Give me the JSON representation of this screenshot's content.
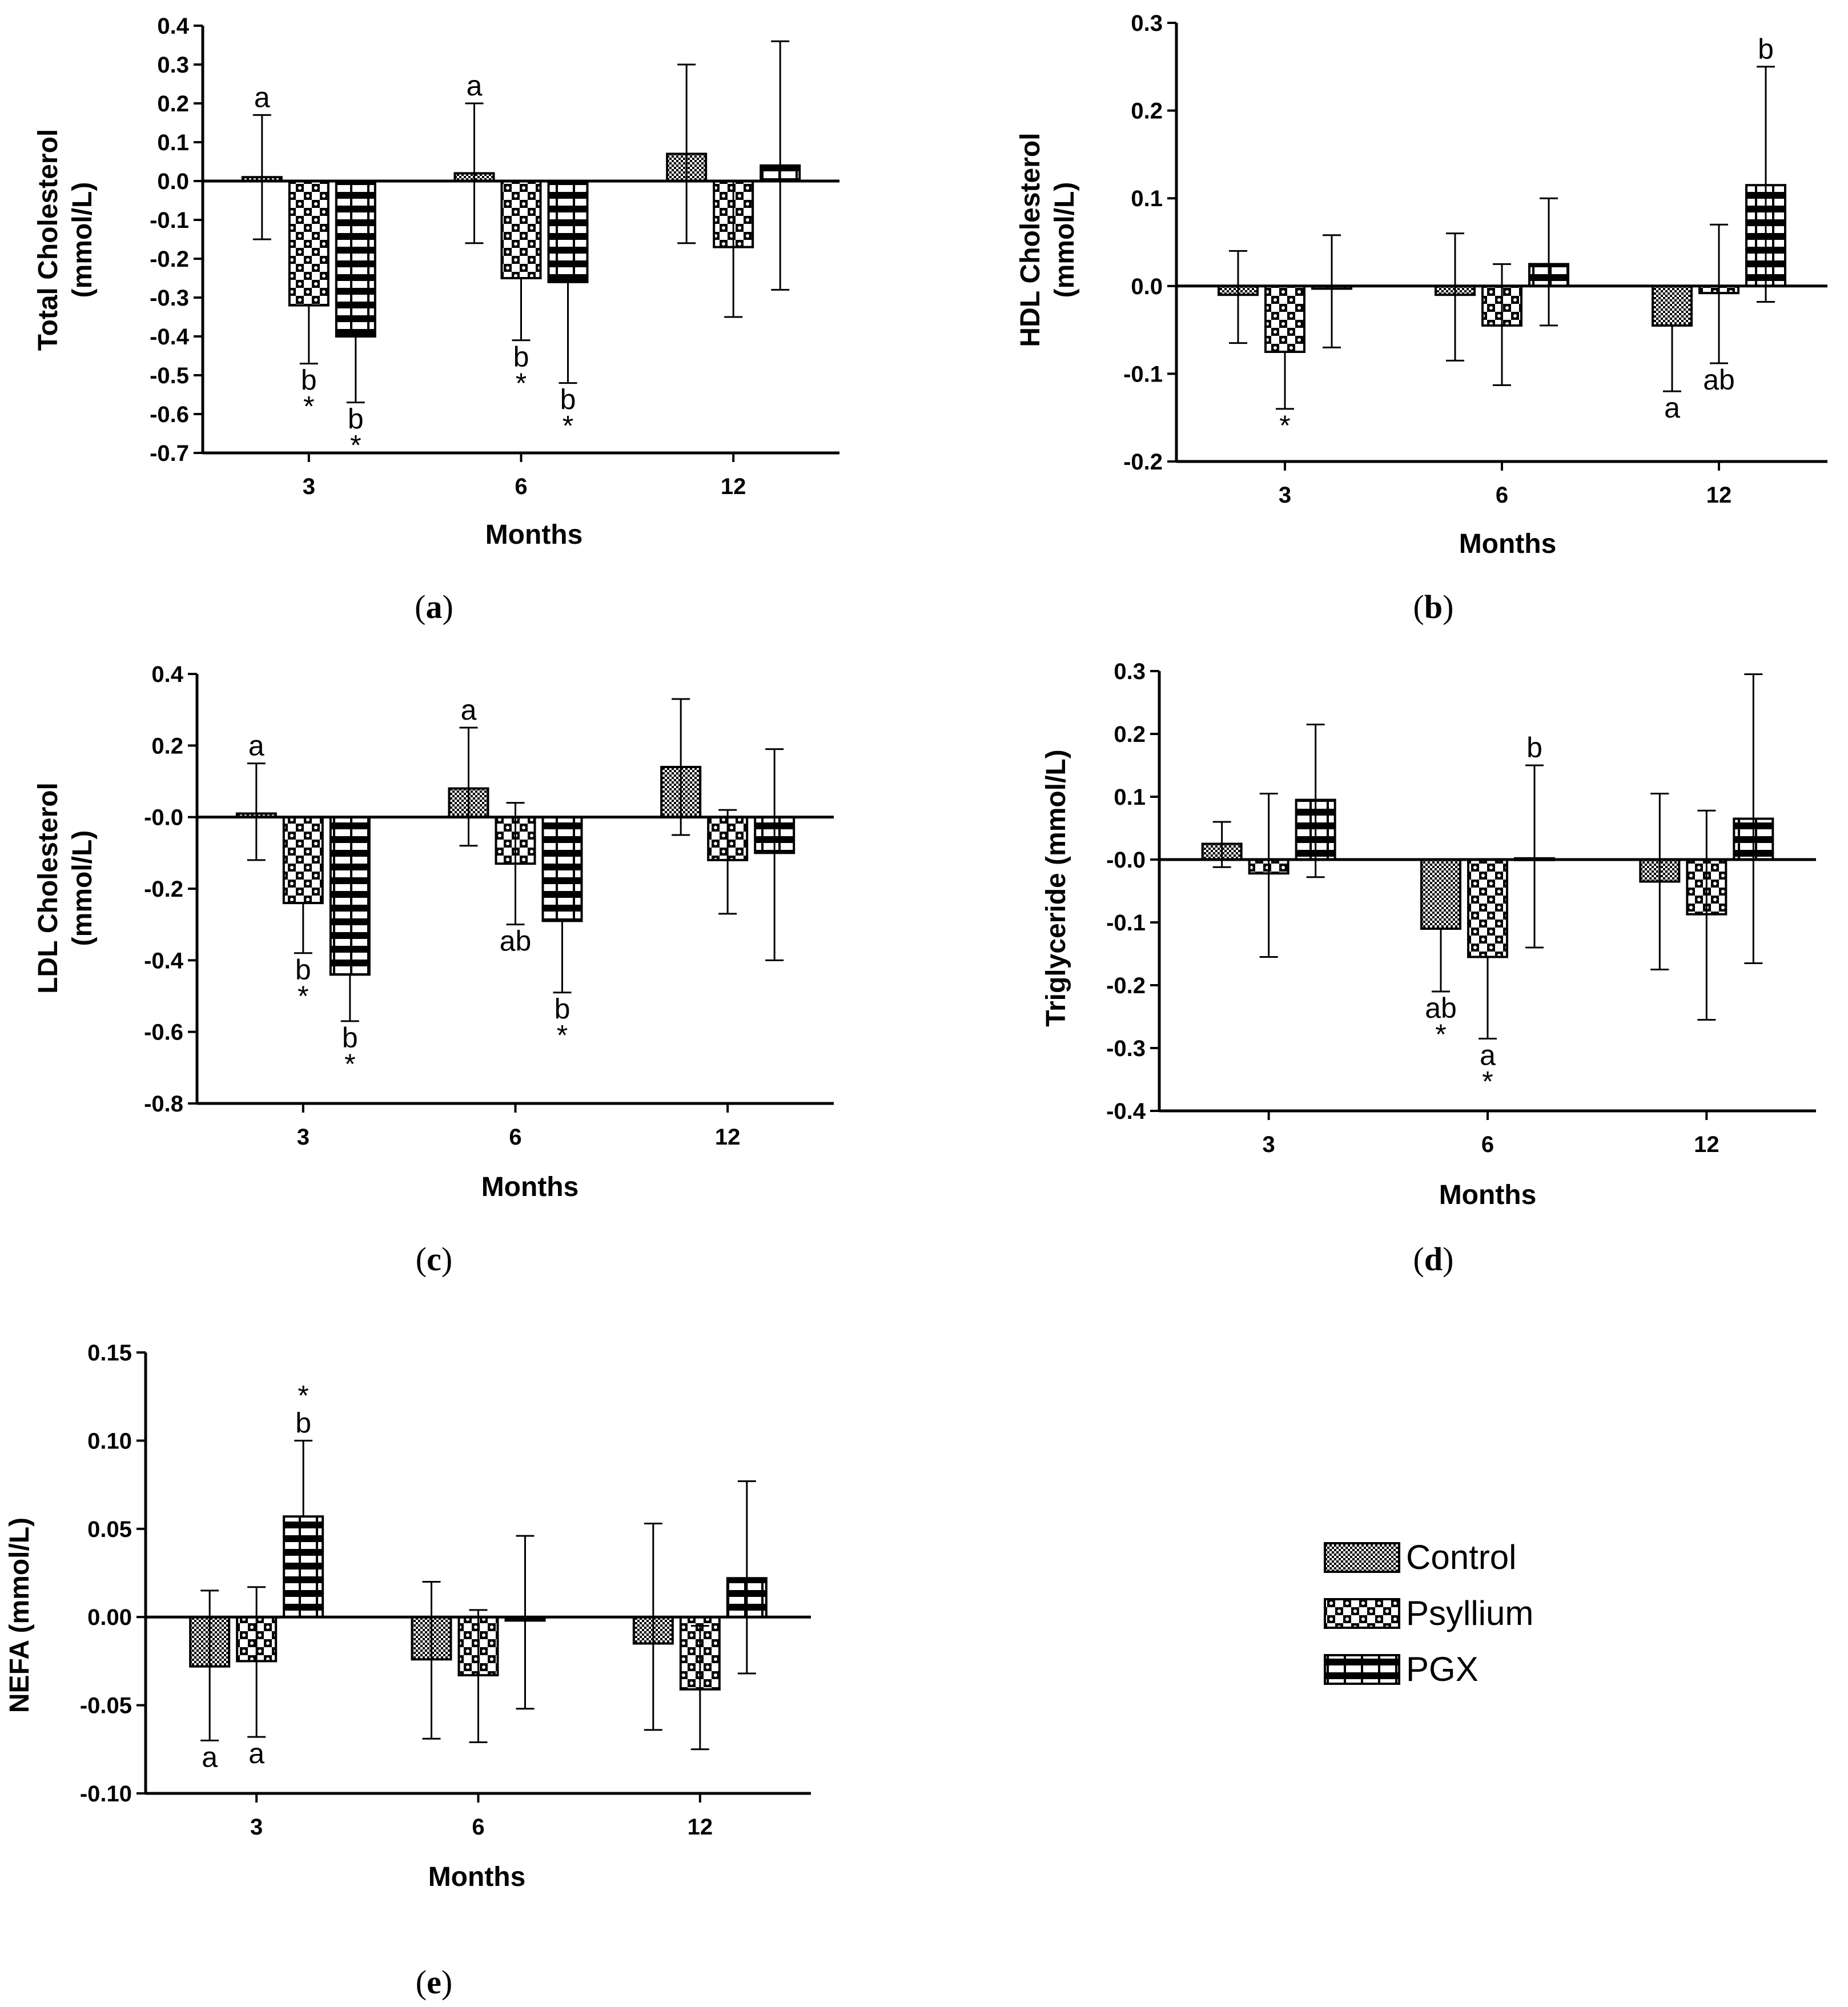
{
  "colors": {
    "ink": "#000000",
    "background": "#ffffff"
  },
  "legend": {
    "items": [
      {
        "key": "control",
        "label": "Control"
      },
      {
        "key": "psyllium",
        "label": "Psyllium"
      },
      {
        "key": "pgx",
        "label": "PGX"
      }
    ]
  },
  "chart_data": [
    {
      "id": "a",
      "caption": "a",
      "type": "bar",
      "ylabel": [
        "Total Cholesterol",
        "(mmol/L)"
      ],
      "xlabel": "Months",
      "categories": [
        "3",
        "6",
        "12"
      ],
      "ylim": [
        -0.7,
        0.4
      ],
      "yticks": [
        0.4,
        0.3,
        0.2,
        0.1,
        0.0,
        -0.1,
        -0.2,
        -0.3,
        -0.4,
        -0.5,
        -0.6,
        -0.7
      ],
      "ytick_labels": [
        "0.4",
        "0.3",
        "0.2",
        "0.1",
        "0.0",
        "-0.1",
        "-0.2",
        "-0.3",
        "-0.4",
        "-0.5",
        "-0.6",
        "-0.7"
      ],
      "series": [
        {
          "name": "Control",
          "values": [
            0.01,
            0.02,
            0.07
          ],
          "err_lo": [
            -0.15,
            -0.16,
            -0.16
          ],
          "err_hi": [
            0.17,
            0.2,
            0.3
          ]
        },
        {
          "name": "Psyllium",
          "values": [
            -0.32,
            -0.25,
            -0.17
          ],
          "err_lo": [
            -0.47,
            -0.41,
            -0.35
          ],
          "err_hi": [
            -0.32,
            -0.25,
            0.0
          ]
        },
        {
          "name": "PGX",
          "values": [
            -0.4,
            -0.26,
            0.04
          ],
          "err_lo": [
            -0.57,
            -0.52,
            -0.28
          ],
          "err_hi": [
            -0.4,
            -0.26,
            0.36
          ]
        }
      ],
      "annotations": [
        {
          "series": 0,
          "cat": 0,
          "text": "a",
          "pos": "above"
        },
        {
          "series": 1,
          "cat": 0,
          "text": "b",
          "pos": "below"
        },
        {
          "series": 1,
          "cat": 0,
          "text": "*",
          "pos": "below2"
        },
        {
          "series": 2,
          "cat": 0,
          "text": "b",
          "pos": "below"
        },
        {
          "series": 2,
          "cat": 0,
          "text": "*",
          "pos": "below2"
        },
        {
          "series": 0,
          "cat": 1,
          "text": "a",
          "pos": "above"
        },
        {
          "series": 1,
          "cat": 1,
          "text": "b",
          "pos": "below"
        },
        {
          "series": 1,
          "cat": 1,
          "text": "*",
          "pos": "below2"
        },
        {
          "series": 2,
          "cat": 1,
          "text": "b",
          "pos": "below"
        },
        {
          "series": 2,
          "cat": 1,
          "text": "*",
          "pos": "below2"
        }
      ]
    },
    {
      "id": "b",
      "caption": "b",
      "type": "bar",
      "ylabel": [
        "HDL Cholesterol",
        "(mmol/L)"
      ],
      "xlabel": "Months",
      "categories": [
        "3",
        "6",
        "12"
      ],
      "ylim": [
        -0.2,
        0.3
      ],
      "yticks": [
        0.3,
        0.2,
        0.1,
        0.0,
        -0.1,
        -0.2
      ],
      "ytick_labels": [
        "0.3",
        "0.2",
        "0.1",
        "0.0",
        "-0.1",
        "-0.2"
      ],
      "series": [
        {
          "name": "Control",
          "values": [
            -0.01,
            -0.01,
            -0.045
          ],
          "err_lo": [
            -0.065,
            -0.085,
            -0.12
          ],
          "err_hi": [
            0.04,
            0.06,
            -0.045
          ]
        },
        {
          "name": "Psyllium",
          "values": [
            -0.075,
            -0.045,
            -0.008
          ],
          "err_lo": [
            -0.14,
            -0.113,
            -0.088
          ],
          "err_hi": [
            -0.075,
            0.025,
            0.07
          ]
        },
        {
          "name": "PGX",
          "values": [
            -0.003,
            0.025,
            0.115
          ],
          "err_lo": [
            -0.07,
            -0.045,
            -0.018
          ],
          "err_hi": [
            0.058,
            0.1,
            0.25
          ]
        }
      ],
      "annotations": [
        {
          "series": 1,
          "cat": 0,
          "text": "*",
          "pos": "below"
        },
        {
          "series": 0,
          "cat": 2,
          "text": "a",
          "pos": "below"
        },
        {
          "series": 1,
          "cat": 2,
          "text": "ab",
          "pos": "below"
        },
        {
          "series": 2,
          "cat": 2,
          "text": "b",
          "pos": "above"
        }
      ]
    },
    {
      "id": "c",
      "caption": "c",
      "type": "bar",
      "ylabel": [
        "LDL Cholesterol",
        "(mmol/L)"
      ],
      "xlabel": "Months",
      "categories": [
        "3",
        "6",
        "12"
      ],
      "ylim": [
        -0.8,
        0.4
      ],
      "yticks": [
        0.4,
        0.2,
        0.0,
        -0.2,
        -0.4,
        -0.6,
        -0.8
      ],
      "ytick_labels": [
        "0.4",
        "0.2",
        "-0.0",
        "-0.2",
        "-0.4",
        "-0.6",
        "-0.8"
      ],
      "series": [
        {
          "name": "Control",
          "values": [
            0.01,
            0.08,
            0.14
          ],
          "err_lo": [
            -0.12,
            -0.08,
            -0.05
          ],
          "err_hi": [
            0.15,
            0.25,
            0.33
          ]
        },
        {
          "name": "Psyllium",
          "values": [
            -0.24,
            -0.13,
            -0.12
          ],
          "err_lo": [
            -0.38,
            -0.3,
            -0.27
          ],
          "err_hi": [
            -0.24,
            0.04,
            0.02
          ]
        },
        {
          "name": "PGX",
          "values": [
            -0.44,
            -0.29,
            -0.1
          ],
          "err_lo": [
            -0.57,
            -0.49,
            -0.4
          ],
          "err_hi": [
            -0.44,
            -0.29,
            0.19
          ]
        }
      ],
      "annotations": [
        {
          "series": 0,
          "cat": 0,
          "text": "a",
          "pos": "above"
        },
        {
          "series": 1,
          "cat": 0,
          "text": "b",
          "pos": "below"
        },
        {
          "series": 1,
          "cat": 0,
          "text": "*",
          "pos": "below2"
        },
        {
          "series": 2,
          "cat": 0,
          "text": "b",
          "pos": "below"
        },
        {
          "series": 2,
          "cat": 0,
          "text": "*",
          "pos": "below2"
        },
        {
          "series": 0,
          "cat": 1,
          "text": "a",
          "pos": "above"
        },
        {
          "series": 1,
          "cat": 1,
          "text": "ab",
          "pos": "below"
        },
        {
          "series": 2,
          "cat": 1,
          "text": "b",
          "pos": "below"
        },
        {
          "series": 2,
          "cat": 1,
          "text": "*",
          "pos": "below2"
        }
      ]
    },
    {
      "id": "d",
      "caption": "d",
      "type": "bar",
      "ylabel": [
        "Triglyceride (mmol/L)"
      ],
      "xlabel": "Months",
      "categories": [
        "3",
        "6",
        "12"
      ],
      "ylim": [
        -0.4,
        0.3
      ],
      "yticks": [
        0.3,
        0.2,
        0.1,
        0.0,
        -0.1,
        -0.2,
        -0.3,
        -0.4
      ],
      "ytick_labels": [
        "0.3",
        "0.2",
        "0.1",
        "-0.0",
        "-0.1",
        "-0.2",
        "-0.3",
        "-0.4"
      ],
      "series": [
        {
          "name": "Control",
          "values": [
            0.025,
            -0.11,
            -0.035
          ],
          "err_lo": [
            -0.012,
            -0.21,
            -0.175
          ],
          "err_hi": [
            0.06,
            -0.11,
            0.105
          ]
        },
        {
          "name": "Psyllium",
          "values": [
            -0.022,
            -0.155,
            -0.087
          ],
          "err_lo": [
            -0.155,
            -0.285,
            -0.255
          ],
          "err_hi": [
            0.105,
            -0.155,
            0.078
          ]
        },
        {
          "name": "PGX",
          "values": [
            0.095,
            0.002,
            0.065
          ],
          "err_lo": [
            -0.028,
            -0.14,
            -0.165
          ],
          "err_hi": [
            0.215,
            0.15,
            0.295
          ]
        }
      ],
      "annotations": [
        {
          "series": 0,
          "cat": 1,
          "text": "ab",
          "pos": "below"
        },
        {
          "series": 0,
          "cat": 1,
          "text": "*",
          "pos": "below2"
        },
        {
          "series": 1,
          "cat": 1,
          "text": "a",
          "pos": "below"
        },
        {
          "series": 1,
          "cat": 1,
          "text": "*",
          "pos": "below2"
        },
        {
          "series": 2,
          "cat": 1,
          "text": "b",
          "pos": "above"
        }
      ]
    },
    {
      "id": "e",
      "caption": "e",
      "type": "bar",
      "ylabel": [
        "NEFA (mmol/L)"
      ],
      "xlabel": "Months",
      "categories": [
        "3",
        "6",
        "12"
      ],
      "ylim": [
        -0.1,
        0.15
      ],
      "yticks": [
        0.15,
        0.1,
        0.05,
        0.0,
        -0.05,
        -0.1
      ],
      "ytick_labels": [
        "0.15",
        "0.10",
        "0.05",
        "0.00",
        "-0.05",
        "-0.10"
      ],
      "series": [
        {
          "name": "Control",
          "values": [
            -0.028,
            -0.024,
            -0.015
          ],
          "err_lo": [
            -0.07,
            -0.069,
            -0.064
          ],
          "err_hi": [
            0.015,
            0.02,
            0.053
          ]
        },
        {
          "name": "Psyllium",
          "values": [
            -0.025,
            -0.033,
            -0.041
          ],
          "err_lo": [
            -0.068,
            -0.071,
            -0.075
          ],
          "err_hi": [
            0.017,
            0.004,
            -0.005
          ]
        },
        {
          "name": "PGX",
          "values": [
            0.057,
            -0.002,
            0.022
          ],
          "err_lo": [
            0.057,
            -0.052,
            -0.032
          ],
          "err_hi": [
            0.1,
            0.046,
            0.077
          ]
        }
      ],
      "annotations": [
        {
          "series": 0,
          "cat": 0,
          "text": "a",
          "pos": "below"
        },
        {
          "series": 1,
          "cat": 0,
          "text": "a",
          "pos": "below"
        },
        {
          "series": 2,
          "cat": 0,
          "text": "b",
          "pos": "above"
        },
        {
          "series": 2,
          "cat": 0,
          "text": "*",
          "pos": "above2"
        }
      ]
    }
  ]
}
